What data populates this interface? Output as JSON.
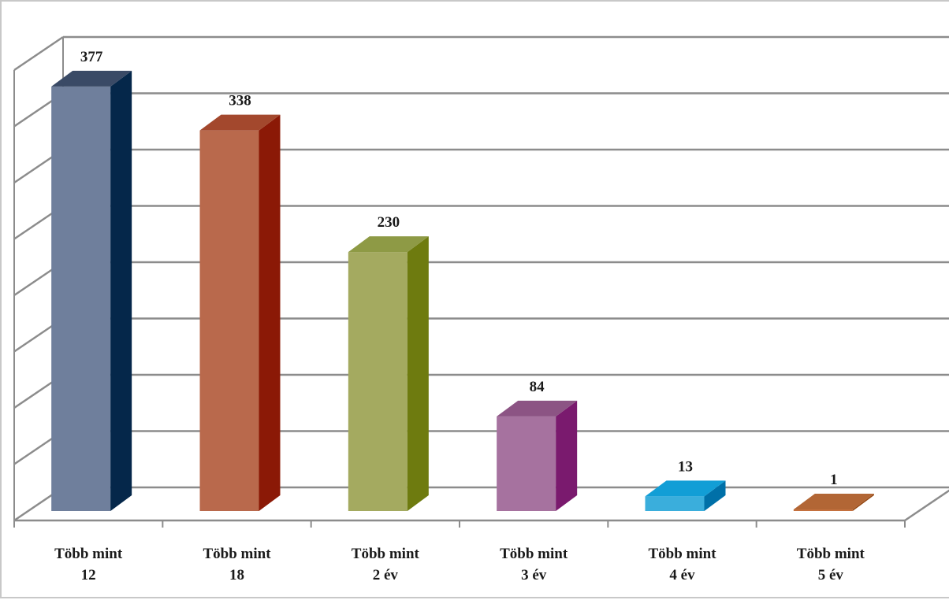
{
  "chart_data": {
    "type": "bar",
    "style": "3d-column",
    "categories": [
      [
        "Több mint",
        "12"
      ],
      [
        "Több mint",
        "18"
      ],
      [
        "Több mint",
        "2 év"
      ],
      [
        "Több mint",
        "3 év"
      ],
      [
        "Több mint",
        "4 év"
      ],
      [
        "Több mint",
        "5 év"
      ]
    ],
    "values": [
      377,
      338,
      230,
      84,
      13,
      1
    ],
    "ylim": [
      0,
      400
    ],
    "ytick_step": 50,
    "grid": true,
    "data_labels": true,
    "legend": "none",
    "colors": [
      {
        "front": "#6f7f9c",
        "side": "#05274a",
        "top": "#3a4a66"
      },
      {
        "front": "#b9694c",
        "side": "#8b1906",
        "top": "#a3482d"
      },
      {
        "front": "#a4aa60",
        "side": "#6e7b0f",
        "top": "#8e9a45"
      },
      {
        "front": "#a6729f",
        "side": "#7a1a6e",
        "top": "#8c5484"
      },
      {
        "front": "#3aaedc",
        "side": "#0070a8",
        "top": "#129ed6"
      },
      {
        "front": "#c4703e",
        "side": "#944712",
        "top": "#b26635"
      }
    ],
    "grid_color": "#8c8c8c"
  }
}
